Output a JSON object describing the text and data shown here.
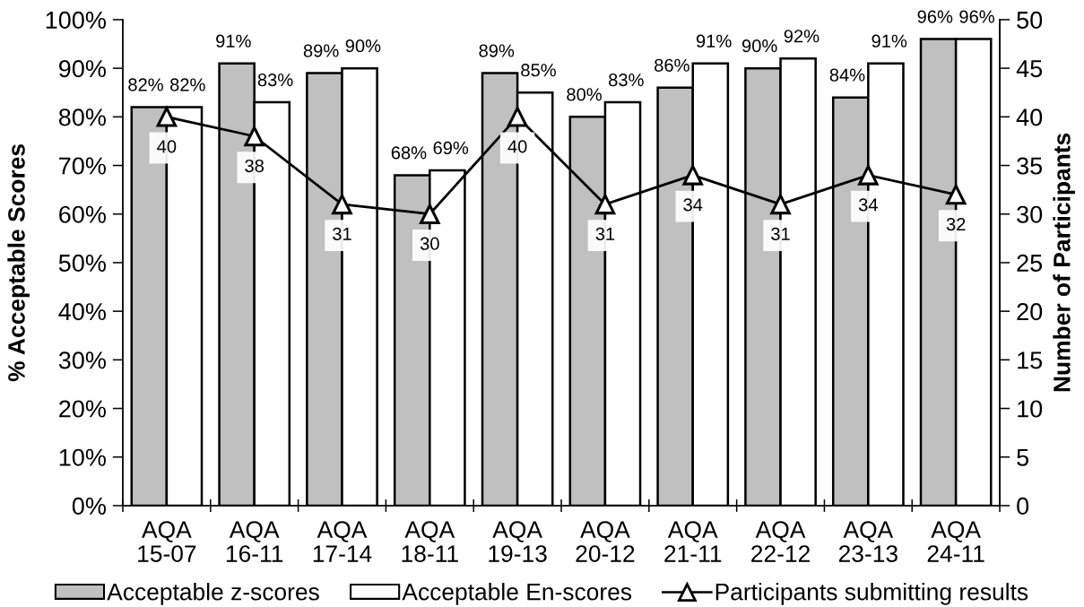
{
  "chart_data": {
    "type": "bar",
    "categories": [
      "AQA\n15-07",
      "AQA\n16-11",
      "AQA\n17-14",
      "AQA\n18-11",
      "AQA\n19-13",
      "AQA\n20-12",
      "AQA\n21-11",
      "AQA\n22-12",
      "AQA\n23-13",
      "AQA\n24-11"
    ],
    "ylabel": "% Acceptable Scores",
    "y2label": "Number of Participants",
    "ylim": [
      0,
      100
    ],
    "yticks": [
      {
        "value": 0,
        "label": "0%"
      },
      {
        "value": 10,
        "label": "10%"
      },
      {
        "value": 20,
        "label": "20%"
      },
      {
        "value": 30,
        "label": "30%"
      },
      {
        "value": 40,
        "label": "40%"
      },
      {
        "value": 50,
        "label": "50%"
      },
      {
        "value": 60,
        "label": "60%"
      },
      {
        "value": 70,
        "label": "70%"
      },
      {
        "value": 80,
        "label": "80%"
      },
      {
        "value": 90,
        "label": "90%"
      },
      {
        "value": 100,
        "label": "100%"
      }
    ],
    "y2lim": [
      0,
      50
    ],
    "y2ticks": [
      0,
      5,
      10,
      15,
      20,
      25,
      30,
      35,
      40,
      45,
      50
    ],
    "series": [
      {
        "name": "Acceptable z-scores",
        "color": "#c0c0c0",
        "values": [
          82,
          91,
          89,
          68,
          89,
          80,
          86,
          90,
          84,
          96
        ],
        "value_labels": [
          "82%",
          "91%",
          "89%",
          "68%",
          "89%",
          "80%",
          "86%",
          "90%",
          "84%",
          "96%"
        ]
      },
      {
        "name": "Acceptable En-scores",
        "color": "#ffffff",
        "values": [
          82,
          83,
          90,
          69,
          85,
          83,
          91,
          92,
          91,
          96
        ],
        "value_labels": [
          "82%",
          "83%",
          "90%",
          "69%",
          "85%",
          "83%",
          "91%",
          "92%",
          "91%",
          "96%"
        ]
      },
      {
        "name": "Participants submitting results",
        "type": "line",
        "axis": "y2",
        "color": "#000000",
        "marker": "triangle",
        "values": [
          40,
          38,
          31,
          30,
          40,
          31,
          34,
          31,
          34,
          32
        ],
        "value_labels": [
          "40",
          "38",
          "31",
          "30",
          "40",
          "31",
          "34",
          "31",
          "34",
          "32"
        ]
      }
    ],
    "legend": "bottom"
  }
}
